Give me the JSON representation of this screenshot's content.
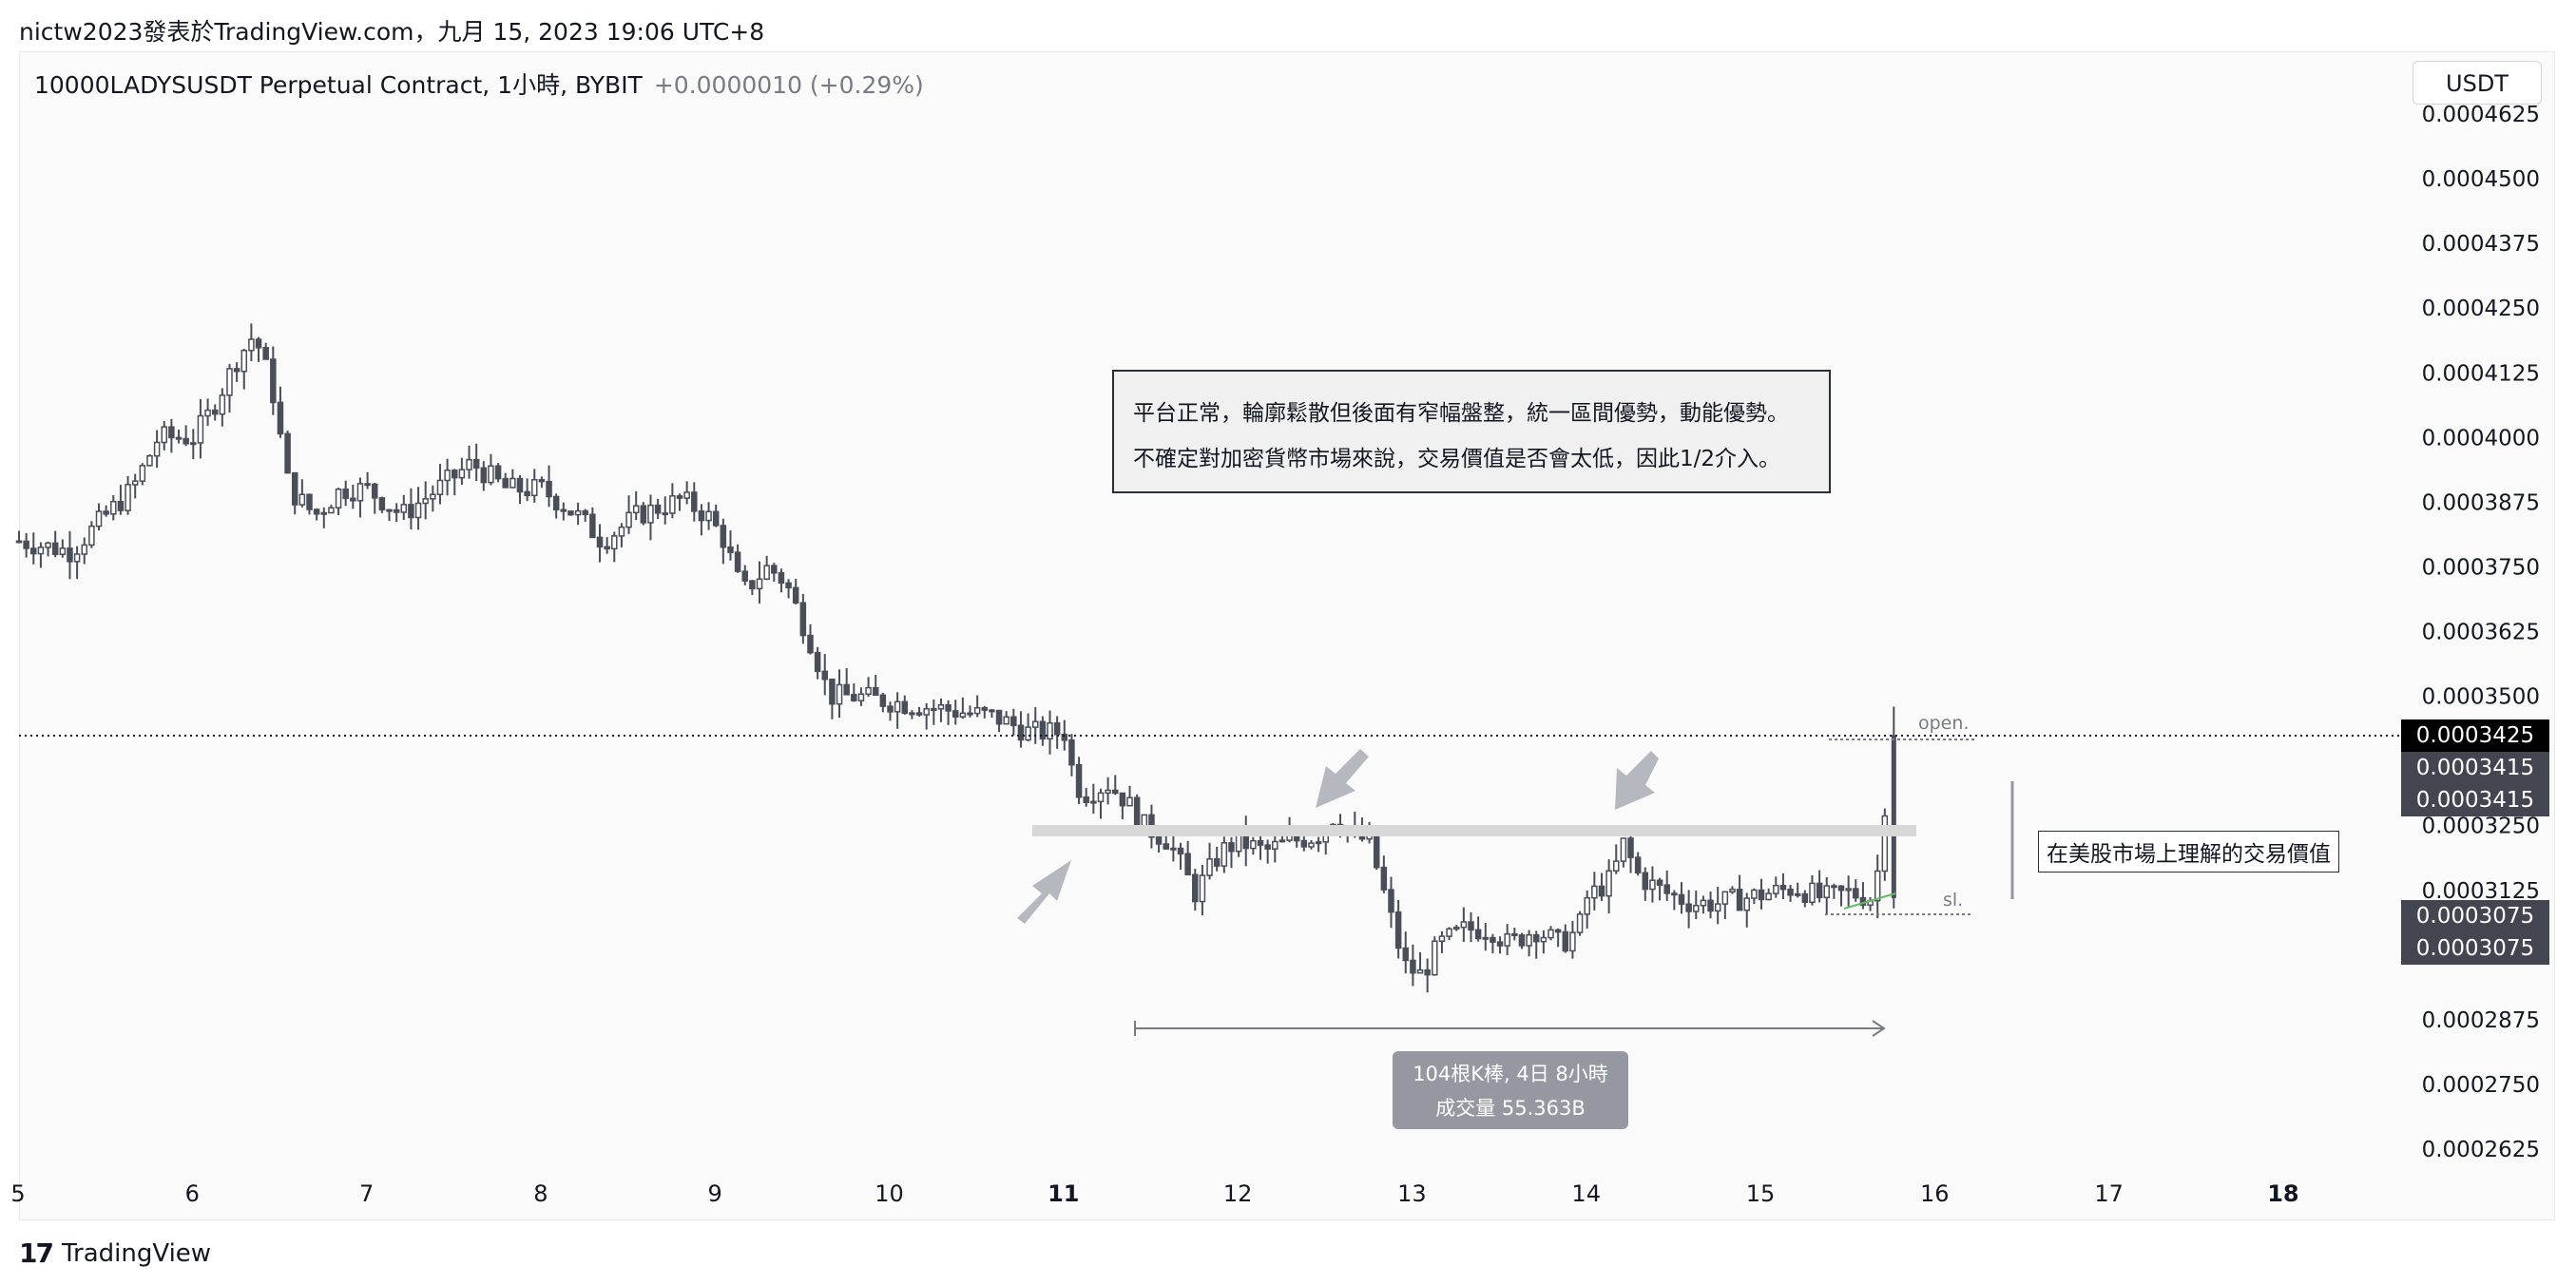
{
  "header": {
    "publish_line": "nictw2023發表於TradingView.com，九月 15, 2023 19:06 UTC+8",
    "symbol_title": "10000LADYSUSDT Perpetual Contract, 1小時, BYBIT",
    "change": "+0.0000010 (+0.29%)",
    "currency_button": "USDT"
  },
  "annotations": {
    "note_line1": "平台正常，輪廓鬆散但後面有窄幅盤整，統一區間優勢，動能優勢。",
    "note_line2": "不確定對加密貨幣市場來說，交易價值是否會太低，因此1/2介入。",
    "right_label": "在美股市場上理解的交易價值",
    "open_label": "open.",
    "sl_label": "sl.",
    "measure_line1": "104根K棒, 4日 8小時",
    "measure_line2": "成交量 55.363B"
  },
  "price_tags": [
    {
      "value": "0.0003425",
      "color": "#000000"
    },
    {
      "value": "0.0003415",
      "color": "#434651"
    },
    {
      "value": "0.0003415",
      "color": "#434651"
    },
    {
      "value": "0.0003075",
      "color": "#434651"
    },
    {
      "value": "0.0003075",
      "color": "#434651"
    }
  ],
  "footer": {
    "logo": "17",
    "brand": "TradingView"
  },
  "chart_data": {
    "type": "candlestick",
    "symbol": "10000LADYSUSDT",
    "interval": "1h",
    "x_ticks": [
      "5",
      "6",
      "7",
      "8",
      "9",
      "10",
      "11",
      "12",
      "13",
      "14",
      "15",
      "16",
      "17",
      "18"
    ],
    "y_ticks": [
      "0.0004625",
      "0.0004500",
      "0.0004375",
      "0.0004250",
      "0.0004125",
      "0.0004000",
      "0.0003875",
      "0.0003750",
      "0.0003625",
      "0.0003500",
      "0.0003250",
      "0.0003125",
      "0.0002875",
      "0.0002750",
      "0.0002625"
    ],
    "ylim": [
      0.00026,
      0.000465
    ],
    "last_price": 0.0003425,
    "entry": 0.0003415,
    "stop_loss": 0.0003075,
    "resistance_zone": 0.000324,
    "close_path": [
      [
        0.0,
        0.00038
      ],
      [
        0.3,
        0.000378
      ],
      [
        0.5,
        0.000385
      ],
      [
        0.65,
        0.00039
      ],
      [
        0.8,
        0.0004
      ],
      [
        1.0,
        0.0004
      ],
      [
        1.1,
        0.000405
      ],
      [
        1.25,
        0.000415
      ],
      [
        1.35,
        0.00042
      ],
      [
        1.45,
        0.00041
      ],
      [
        1.55,
        0.00039
      ],
      [
        1.7,
        0.000385
      ],
      [
        1.85,
        0.00039
      ],
      [
        2.0,
        0.00039
      ],
      [
        2.2,
        0.000385
      ],
      [
        2.4,
        0.00039
      ],
      [
        2.6,
        0.000395
      ],
      [
        2.8,
        0.00039
      ],
      [
        3.0,
        0.00039
      ],
      [
        3.2,
        0.000385
      ],
      [
        3.35,
        0.00038
      ],
      [
        3.55,
        0.000385
      ],
      [
        3.8,
        0.000388
      ],
      [
        3.95,
        0.000385
      ],
      [
        4.05,
        0.00038
      ],
      [
        4.15,
        0.00037
      ],
      [
        4.3,
        0.000375
      ],
      [
        4.4,
        0.000372
      ],
      [
        4.55,
        0.00036
      ],
      [
        4.65,
        0.00035
      ],
      [
        4.8,
        0.00035
      ],
      [
        5.0,
        0.000349
      ],
      [
        5.2,
        0.000348
      ],
      [
        5.4,
        0.000347
      ],
      [
        5.6,
        0.000346
      ],
      [
        5.8,
        0.000343
      ],
      [
        6.0,
        0.000343
      ],
      [
        6.05,
        0.000335
      ],
      [
        6.1,
        0.000331
      ],
      [
        6.25,
        0.000333
      ],
      [
        6.35,
        0.00033
      ],
      [
        6.45,
        0.000325
      ],
      [
        6.6,
        0.000322
      ],
      [
        6.75,
        0.000312
      ],
      [
        6.9,
        0.00032
      ],
      [
        7.0,
        0.000322
      ],
      [
        7.15,
        0.00032
      ],
      [
        7.3,
        0.000322
      ],
      [
        7.45,
        0.000323
      ],
      [
        7.55,
        0.000327
      ],
      [
        7.65,
        0.000323
      ],
      [
        7.75,
        0.000322
      ],
      [
        7.85,
        0.00031
      ],
      [
        7.95,
        0.000298
      ],
      [
        8.05,
        0.000296
      ],
      [
        8.15,
        0.000302
      ],
      [
        8.3,
        0.000305
      ],
      [
        8.45,
        0.000305
      ],
      [
        8.55,
        0.000302
      ],
      [
        8.7,
        0.000305
      ],
      [
        8.85,
        0.000302
      ],
      [
        8.95,
        0.000305
      ],
      [
        9.0,
        0.000311
      ],
      [
        9.15,
        0.000315
      ],
      [
        9.2,
        0.000322
      ],
      [
        9.3,
        0.000315
      ],
      [
        9.45,
        0.000312
      ],
      [
        9.6,
        0.00031
      ],
      [
        9.75,
        0.00031
      ],
      [
        9.9,
        0.000311
      ],
      [
        10.05,
        0.000312
      ],
      [
        10.2,
        0.000313
      ],
      [
        10.35,
        0.000311
      ],
      [
        10.5,
        0.000312
      ],
      [
        10.65,
        0.000311
      ],
      [
        10.75,
        0.000342
      ]
    ],
    "high": 0.000431,
    "low": 0.000294
  }
}
